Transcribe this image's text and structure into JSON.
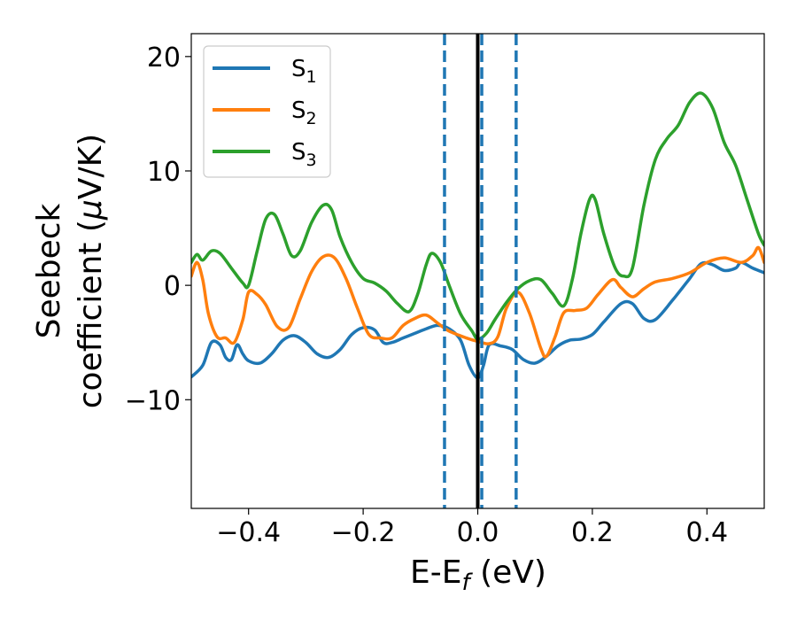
{
  "chart_data": {
    "type": "line",
    "xlabel": "E-E",
    "xlabel_sub": "f",
    "xlabel_unit": " (eV)",
    "ylabel_line1": "Seebeck",
    "ylabel_line2_pre": "coefficient  (",
    "ylabel_mu": "μ",
    "ylabel_line2_post": "V/K)",
    "xlim": [
      -0.5,
      0.5
    ],
    "ylim": [
      -19.5,
      22
    ],
    "grid": false,
    "legend_position": "upper-left",
    "x_ticks": [
      -0.4,
      -0.2,
      0.0,
      0.2,
      0.4
    ],
    "x_tick_labels": [
      "−0.4",
      "−0.2",
      "0.0",
      "0.2",
      "0.4"
    ],
    "y_ticks": [
      -10,
      0,
      10,
      20
    ],
    "y_tick_labels": [
      "−10",
      "0",
      "10",
      "20"
    ],
    "vertical_lines": [
      {
        "x": -0.058,
        "style": "dashed",
        "color": "#1f77b4"
      },
      {
        "x": 0.007,
        "style": "dashed",
        "color": "#1f77b4"
      },
      {
        "x": 0.067,
        "style": "dashed",
        "color": "#1f77b4"
      },
      {
        "x": 0.0,
        "style": "solid",
        "color": "#000000"
      }
    ],
    "series": [
      {
        "name": "S",
        "name_sub": "1",
        "color": "#1f77b4",
        "points": [
          [
            -0.5,
            -8.0
          ],
          [
            -0.48,
            -7.0
          ],
          [
            -0.465,
            -5.0
          ],
          [
            -0.45,
            -5.2
          ],
          [
            -0.44,
            -6.3
          ],
          [
            -0.43,
            -6.5
          ],
          [
            -0.42,
            -5.2
          ],
          [
            -0.41,
            -6.0
          ],
          [
            -0.4,
            -6.6
          ],
          [
            -0.38,
            -6.8
          ],
          [
            -0.36,
            -6.0
          ],
          [
            -0.34,
            -4.8
          ],
          [
            -0.32,
            -4.4
          ],
          [
            -0.3,
            -5.0
          ],
          [
            -0.28,
            -6.0
          ],
          [
            -0.26,
            -6.3
          ],
          [
            -0.24,
            -5.6
          ],
          [
            -0.22,
            -4.3
          ],
          [
            -0.2,
            -3.7
          ],
          [
            -0.18,
            -3.9
          ],
          [
            -0.165,
            -5.0
          ],
          [
            -0.15,
            -5.0
          ],
          [
            -0.13,
            -4.6
          ],
          [
            -0.11,
            -4.2
          ],
          [
            -0.09,
            -3.8
          ],
          [
            -0.07,
            -3.5
          ],
          [
            -0.05,
            -3.8
          ],
          [
            -0.03,
            -4.8
          ],
          [
            -0.015,
            -7.0
          ],
          [
            0.0,
            -8.1
          ],
          [
            0.01,
            -7.0
          ],
          [
            0.02,
            -5.2
          ],
          [
            0.04,
            -5.3
          ],
          [
            0.06,
            -5.6
          ],
          [
            0.08,
            -6.5
          ],
          [
            0.1,
            -6.8
          ],
          [
            0.12,
            -6.2
          ],
          [
            0.14,
            -5.3
          ],
          [
            0.16,
            -4.8
          ],
          [
            0.18,
            -4.7
          ],
          [
            0.2,
            -4.3
          ],
          [
            0.22,
            -3.2
          ],
          [
            0.25,
            -1.6
          ],
          [
            0.27,
            -1.6
          ],
          [
            0.29,
            -2.9
          ],
          [
            0.31,
            -3.0
          ],
          [
            0.34,
            -1.3
          ],
          [
            0.37,
            0.6
          ],
          [
            0.39,
            1.9
          ],
          [
            0.41,
            1.8
          ],
          [
            0.43,
            1.3
          ],
          [
            0.45,
            1.5
          ],
          [
            0.46,
            2.0
          ],
          [
            0.48,
            1.5
          ],
          [
            0.5,
            1.1
          ]
        ]
      },
      {
        "name": "S",
        "name_sub": "2",
        "color": "#ff7f0e",
        "points": [
          [
            -0.5,
            0.8
          ],
          [
            -0.49,
            2.0
          ],
          [
            -0.48,
            0.5
          ],
          [
            -0.47,
            -2.5
          ],
          [
            -0.455,
            -4.5
          ],
          [
            -0.44,
            -4.6
          ],
          [
            -0.425,
            -5.0
          ],
          [
            -0.41,
            -3.0
          ],
          [
            -0.4,
            -0.6
          ],
          [
            -0.385,
            -0.8
          ],
          [
            -0.37,
            -1.7
          ],
          [
            -0.35,
            -3.6
          ],
          [
            -0.33,
            -3.7
          ],
          [
            -0.31,
            -1.2
          ],
          [
            -0.29,
            1.2
          ],
          [
            -0.27,
            2.5
          ],
          [
            -0.25,
            2.4
          ],
          [
            -0.23,
            0.6
          ],
          [
            -0.21,
            -2.0
          ],
          [
            -0.19,
            -4.3
          ],
          [
            -0.17,
            -4.6
          ],
          [
            -0.15,
            -4.6
          ],
          [
            -0.13,
            -3.5
          ],
          [
            -0.11,
            -2.9
          ],
          [
            -0.09,
            -2.6
          ],
          [
            -0.07,
            -3.3
          ],
          [
            -0.05,
            -4.0
          ],
          [
            -0.02,
            -4.6
          ],
          [
            0.0,
            -4.9
          ],
          [
            0.02,
            -5.1
          ],
          [
            0.035,
            -4.5
          ],
          [
            0.05,
            -2.0
          ],
          [
            0.07,
            -0.6
          ],
          [
            0.09,
            -2.4
          ],
          [
            0.11,
            -5.5
          ],
          [
            0.12,
            -6.2
          ],
          [
            0.135,
            -4.5
          ],
          [
            0.15,
            -2.4
          ],
          [
            0.17,
            -2.2
          ],
          [
            0.19,
            -2.0
          ],
          [
            0.21,
            -0.8
          ],
          [
            0.235,
            0.5
          ],
          [
            0.25,
            -0.2
          ],
          [
            0.27,
            -1.0
          ],
          [
            0.29,
            -0.3
          ],
          [
            0.31,
            0.3
          ],
          [
            0.34,
            0.6
          ],
          [
            0.37,
            1.1
          ],
          [
            0.4,
            2.0
          ],
          [
            0.43,
            2.4
          ],
          [
            0.46,
            2.0
          ],
          [
            0.48,
            2.6
          ],
          [
            0.49,
            3.3
          ],
          [
            0.5,
            2.0
          ]
        ]
      },
      {
        "name": "S",
        "name_sub": "3",
        "color": "#2ca02c",
        "points": [
          [
            -0.5,
            2.0
          ],
          [
            -0.49,
            2.7
          ],
          [
            -0.48,
            2.2
          ],
          [
            -0.465,
            3.0
          ],
          [
            -0.45,
            2.8
          ],
          [
            -0.43,
            1.5
          ],
          [
            -0.41,
            0.2
          ],
          [
            -0.4,
            0.0
          ],
          [
            -0.385,
            3.0
          ],
          [
            -0.37,
            5.8
          ],
          [
            -0.355,
            6.2
          ],
          [
            -0.34,
            4.5
          ],
          [
            -0.325,
            2.6
          ],
          [
            -0.31,
            3.0
          ],
          [
            -0.29,
            5.5
          ],
          [
            -0.27,
            7.0
          ],
          [
            -0.255,
            6.6
          ],
          [
            -0.24,
            4.2
          ],
          [
            -0.22,
            2.0
          ],
          [
            -0.2,
            0.6
          ],
          [
            -0.18,
            0.2
          ],
          [
            -0.16,
            -0.5
          ],
          [
            -0.14,
            -1.6
          ],
          [
            -0.12,
            -2.3
          ],
          [
            -0.105,
            -0.8
          ],
          [
            -0.09,
            1.8
          ],
          [
            -0.08,
            2.8
          ],
          [
            -0.065,
            2.0
          ],
          [
            -0.05,
            0.0
          ],
          [
            -0.03,
            -2.5
          ],
          [
            -0.01,
            -4.0
          ],
          [
            0.0,
            -4.7
          ],
          [
            0.015,
            -4.2
          ],
          [
            0.03,
            -3.0
          ],
          [
            0.05,
            -1.5
          ],
          [
            0.07,
            -0.3
          ],
          [
            0.09,
            0.4
          ],
          [
            0.11,
            0.5
          ],
          [
            0.13,
            -0.7
          ],
          [
            0.15,
            -1.8
          ],
          [
            0.165,
            0.5
          ],
          [
            0.18,
            4.5
          ],
          [
            0.195,
            7.5
          ],
          [
            0.205,
            7.5
          ],
          [
            0.22,
            4.5
          ],
          [
            0.24,
            1.5
          ],
          [
            0.255,
            0.8
          ],
          [
            0.27,
            1.5
          ],
          [
            0.29,
            7.0
          ],
          [
            0.31,
            11.0
          ],
          [
            0.33,
            12.8
          ],
          [
            0.35,
            14.0
          ],
          [
            0.37,
            16.0
          ],
          [
            0.39,
            16.8
          ],
          [
            0.41,
            15.5
          ],
          [
            0.43,
            12.5
          ],
          [
            0.45,
            10.5
          ],
          [
            0.47,
            7.5
          ],
          [
            0.49,
            4.5
          ],
          [
            0.5,
            3.5
          ]
        ]
      }
    ]
  }
}
